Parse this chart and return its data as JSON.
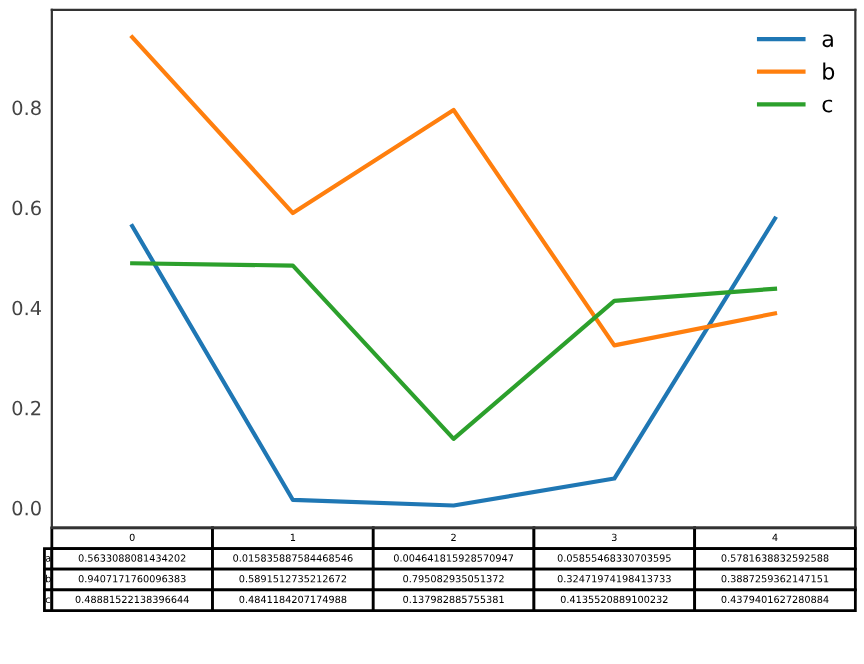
{
  "chart_data": {
    "type": "line",
    "categories": [
      "0",
      "1",
      "2",
      "3",
      "4"
    ],
    "series": [
      {
        "name": "a",
        "color": "#1f77b4",
        "values": [
          0.5633088081434202,
          0.015835887584468546,
          0.004641815928570947,
          0.05855468330703595,
          0.5781638832592588
        ]
      },
      {
        "name": "b",
        "color": "#ff7f0e",
        "values": [
          0.9407171760096383,
          0.5891512735212672,
          0.795082935051372,
          0.32471974198413733,
          0.3887259362147151
        ]
      },
      {
        "name": "c",
        "color": "#2ca02c",
        "values": [
          0.48881522138396644,
          0.4841184207174988,
          0.137982885755381,
          0.4135520889100232,
          0.4379401627280884
        ]
      }
    ],
    "ylim": [
      -0.04,
      0.995
    ],
    "yticks": [
      {
        "value": 0,
        "label": "0.0"
      },
      0.2,
      0.4,
      0.6,
      0.8
    ],
    "tick_labels": "y",
    "data_labels": true,
    "grid": false,
    "legend": "top right",
    "marker": "none",
    "line_style": "solid"
  }
}
